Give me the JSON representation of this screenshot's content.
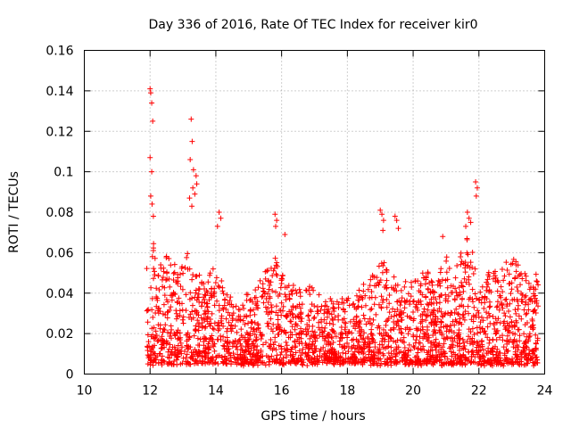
{
  "chart_data": {
    "type": "scatter",
    "title": "Day 336 of 2016, Rate Of TEC Index for receiver kir0",
    "xlabel": "GPS time / hours",
    "ylabel": "ROTI / TECUs",
    "xlim": [
      10,
      24
    ],
    "ylim": [
      0,
      0.16
    ],
    "x_ticks": [
      "10",
      "12",
      "14",
      "16",
      "18",
      "20",
      "22",
      "24"
    ],
    "y_ticks": [
      "0",
      "0.02",
      "0.04",
      "0.06",
      "0.08",
      "0.1",
      "0.12",
      "0.14",
      "0.16"
    ],
    "grid": true,
    "marker": "+",
    "color": "#ff0000",
    "x_range": [
      11.9,
      23.8
    ],
    "envelope": {
      "x": [
        11.9,
        12.0,
        12.1,
        12.3,
        12.6,
        12.8,
        13.0,
        13.2,
        13.3,
        13.4,
        13.6,
        13.8,
        14.0,
        14.1,
        14.3,
        14.6,
        15.0,
        15.3,
        15.6,
        15.8,
        16.0,
        16.2,
        16.5,
        16.8,
        17.0,
        17.3,
        17.6,
        18.0,
        18.3,
        18.6,
        18.9,
        19.0,
        19.2,
        19.4,
        19.6,
        19.8,
        20.0,
        20.3,
        20.6,
        20.9,
        21.1,
        21.4,
        21.6,
        21.8,
        22.0,
        22.2,
        22.5,
        22.8,
        23.0,
        23.3,
        23.5,
        23.8
      ],
      "ymax": [
        0.06,
        0.07,
        0.065,
        0.055,
        0.06,
        0.065,
        0.055,
        0.065,
        0.06,
        0.05,
        0.048,
        0.055,
        0.06,
        0.05,
        0.04,
        0.035,
        0.04,
        0.045,
        0.055,
        0.06,
        0.05,
        0.045,
        0.042,
        0.045,
        0.042,
        0.038,
        0.038,
        0.04,
        0.042,
        0.048,
        0.052,
        0.058,
        0.054,
        0.05,
        0.045,
        0.048,
        0.05,
        0.052,
        0.048,
        0.055,
        0.06,
        0.058,
        0.07,
        0.065,
        0.058,
        0.055,
        0.05,
        0.055,
        0.058,
        0.052,
        0.048,
        0.05
      ],
      "ymin": 0.005
    },
    "outliers": [
      {
        "x": 12.0,
        "y": 0.141
      },
      {
        "x": 12.02,
        "y": 0.139
      },
      {
        "x": 12.05,
        "y": 0.134
      },
      {
        "x": 12.08,
        "y": 0.125
      },
      {
        "x": 12.0,
        "y": 0.107
      },
      {
        "x": 12.05,
        "y": 0.1
      },
      {
        "x": 12.02,
        "y": 0.088
      },
      {
        "x": 12.06,
        "y": 0.084
      },
      {
        "x": 12.1,
        "y": 0.078
      },
      {
        "x": 13.25,
        "y": 0.126
      },
      {
        "x": 13.28,
        "y": 0.115
      },
      {
        "x": 13.22,
        "y": 0.106
      },
      {
        "x": 13.32,
        "y": 0.101
      },
      {
        "x": 13.4,
        "y": 0.098
      },
      {
        "x": 13.42,
        "y": 0.094
      },
      {
        "x": 13.3,
        "y": 0.092
      },
      {
        "x": 13.36,
        "y": 0.089
      },
      {
        "x": 13.2,
        "y": 0.087
      },
      {
        "x": 13.27,
        "y": 0.083
      },
      {
        "x": 14.1,
        "y": 0.08
      },
      {
        "x": 14.15,
        "y": 0.077
      },
      {
        "x": 14.05,
        "y": 0.073
      },
      {
        "x": 15.8,
        "y": 0.079
      },
      {
        "x": 15.85,
        "y": 0.076
      },
      {
        "x": 15.82,
        "y": 0.073
      },
      {
        "x": 16.1,
        "y": 0.069
      },
      {
        "x": 19.0,
        "y": 0.081
      },
      {
        "x": 19.05,
        "y": 0.079
      },
      {
        "x": 19.1,
        "y": 0.076
      },
      {
        "x": 19.08,
        "y": 0.071
      },
      {
        "x": 19.45,
        "y": 0.078
      },
      {
        "x": 19.5,
        "y": 0.076
      },
      {
        "x": 19.55,
        "y": 0.072
      },
      {
        "x": 21.65,
        "y": 0.08
      },
      {
        "x": 21.7,
        "y": 0.077
      },
      {
        "x": 21.6,
        "y": 0.073
      },
      {
        "x": 21.75,
        "y": 0.075
      },
      {
        "x": 21.9,
        "y": 0.095
      },
      {
        "x": 21.95,
        "y": 0.092
      },
      {
        "x": 21.92,
        "y": 0.088
      },
      {
        "x": 20.9,
        "y": 0.068
      }
    ]
  }
}
